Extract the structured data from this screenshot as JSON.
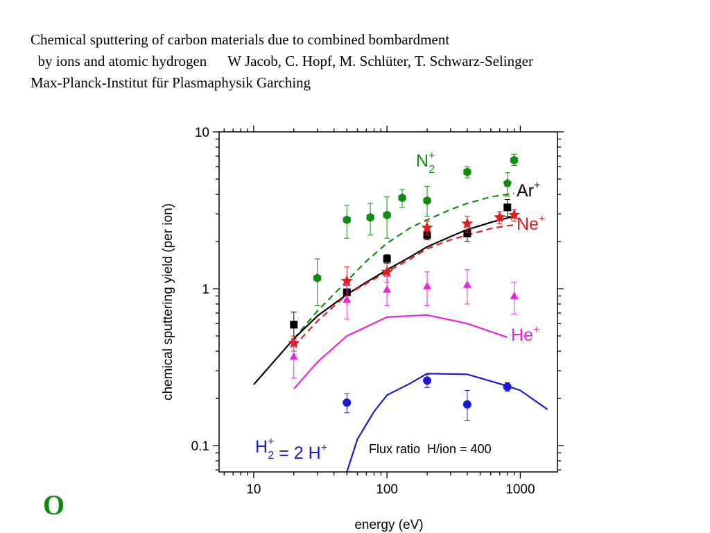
{
  "header": {
    "line1": "Chemical sputtering of carbon materials due to combined bombardment",
    "line2a": "by ions and atomic hydrogen",
    "line2b": "W Jacob, C. Hopf, M. Schlüter, T. Schwarz-Selinger",
    "line3": "Max-Planck-Institut für Plasmaphysik Garching"
  },
  "corner_mark": "O",
  "colors": {
    "n2": "#118c11",
    "ar": "#000000",
    "ne": "#e02020",
    "he": "#ee22dd",
    "h": "#1a1ad6"
  },
  "chart_data": {
    "type": "scatter",
    "x_scale": "log",
    "y_scale": "log",
    "xlim": [
      5.5,
      1900
    ],
    "ylim": [
      0.068,
      10
    ],
    "xlabel": "energy (eV)",
    "ylabel": "chemical sputtering yield (per ion)",
    "x_ticks": [
      {
        "v": 10,
        "label": "10"
      },
      {
        "v": 100,
        "label": "100"
      },
      {
        "v": 1000,
        "label": "1000"
      }
    ],
    "y_ticks": [
      {
        "v": 0.1,
        "label": "0.1"
      },
      {
        "v": 1,
        "label": "1"
      },
      {
        "v": 10,
        "label": "10"
      }
    ],
    "annotation": "Flux ratio  H/ion = 400",
    "series_labels": {
      "n2": {
        "base": "N",
        "sub": "2",
        "sup": "+"
      },
      "ar": {
        "base": "Ar",
        "sup": "+"
      },
      "ne": {
        "base": "Ne",
        "sup": "+"
      },
      "he": {
        "base": "He",
        "sup": "+"
      },
      "h": {
        "base": "H",
        "sub": "2",
        "sup": "+",
        "rest": " = 2 H",
        "sup2": "+"
      }
    },
    "series": [
      {
        "key": "n2",
        "marker": "hexagon",
        "points": [
          {
            "x": 30,
            "y": 1.17,
            "lo": 0.78,
            "hi": 1.55
          },
          {
            "x": 50,
            "y": 2.75,
            "lo": 2.1,
            "hi": 3.4
          },
          {
            "x": 75,
            "y": 2.85,
            "lo": 2.2,
            "hi": 3.5
          },
          {
            "x": 100,
            "y": 2.95,
            "lo": 2.1,
            "hi": 3.85
          },
          {
            "x": 130,
            "y": 3.8,
            "lo": 3.3,
            "hi": 4.3
          },
          {
            "x": 200,
            "y": 3.65,
            "lo": 2.9,
            "hi": 4.5
          },
          {
            "x": 400,
            "y": 5.55,
            "lo": 5.1,
            "hi": 6.0
          },
          {
            "x": 900,
            "y": 6.6,
            "lo": 6.1,
            "hi": 7.2
          }
        ]
      },
      {
        "key": "n2",
        "marker": "pentagon",
        "points": [
          {
            "x": 800,
            "y": 4.7,
            "lo": 3.9,
            "hi": 5.5
          }
        ]
      },
      {
        "key": "ar",
        "marker": "square",
        "points": [
          {
            "x": 20,
            "y": 0.59,
            "lo": 0.48,
            "hi": 0.71
          },
          {
            "x": 50,
            "y": 0.95,
            "lo": 0.85,
            "hi": 1.05
          },
          {
            "x": 100,
            "y": 1.55,
            "lo": 1.45,
            "hi": 1.65
          },
          {
            "x": 200,
            "y": 2.2,
            "lo": 2.05,
            "hi": 2.35
          },
          {
            "x": 400,
            "y": 2.25,
            "lo": 2.0,
            "hi": 2.5
          },
          {
            "x": 800,
            "y": 3.3,
            "lo": 2.9,
            "hi": 3.7
          }
        ]
      },
      {
        "key": "ne",
        "marker": "star",
        "points": [
          {
            "x": 20,
            "y": 0.45,
            "lo": 0.4,
            "hi": 0.5
          },
          {
            "x": 50,
            "y": 1.12,
            "lo": 0.9,
            "hi": 1.38
          },
          {
            "x": 100,
            "y": 1.28,
            "lo": 1.1,
            "hi": 1.45
          },
          {
            "x": 200,
            "y": 2.45,
            "lo": 2.2,
            "hi": 2.7
          },
          {
            "x": 400,
            "y": 2.6,
            "lo": 2.3,
            "hi": 2.9
          },
          {
            "x": 700,
            "y": 2.85,
            "lo": 2.6,
            "hi": 3.1
          },
          {
            "x": 900,
            "y": 2.95,
            "lo": 2.7,
            "hi": 3.2
          }
        ]
      },
      {
        "key": "he",
        "marker": "triangle",
        "points": [
          {
            "x": 20,
            "y": 0.37,
            "lo": 0.27,
            "hi": 0.47
          },
          {
            "x": 50,
            "y": 0.85,
            "lo": 0.64,
            "hi": 1.05
          },
          {
            "x": 100,
            "y": 0.99,
            "lo": 0.78,
            "hi": 1.2
          },
          {
            "x": 200,
            "y": 1.04,
            "lo": 0.78,
            "hi": 1.28
          },
          {
            "x": 400,
            "y": 1.06,
            "lo": 0.8,
            "hi": 1.32
          },
          {
            "x": 900,
            "y": 0.9,
            "lo": 0.69,
            "hi": 1.1
          }
        ]
      },
      {
        "key": "h",
        "marker": "circle",
        "points": [
          {
            "x": 50,
            "y": 0.188,
            "lo": 0.162,
            "hi": 0.215
          },
          {
            "x": 200,
            "y": 0.26,
            "lo": 0.235,
            "hi": 0.285
          },
          {
            "x": 400,
            "y": 0.183,
            "lo": 0.145,
            "hi": 0.225
          },
          {
            "x": 800,
            "y": 0.237,
            "lo": 0.222,
            "hi": 0.252
          }
        ]
      }
    ],
    "curves": [
      {
        "key": "n2",
        "dash": true,
        "points": [
          [
            20,
            0.48
          ],
          [
            30,
            0.72
          ],
          [
            50,
            1.12
          ],
          [
            70,
            1.5
          ],
          [
            100,
            1.95
          ],
          [
            150,
            2.45
          ],
          [
            200,
            2.75
          ],
          [
            300,
            3.2
          ],
          [
            400,
            3.5
          ],
          [
            600,
            3.85
          ],
          [
            800,
            4.0
          ],
          [
            900,
            4.05
          ]
        ]
      },
      {
        "key": "ar",
        "dash": false,
        "points": [
          [
            10,
            0.245
          ],
          [
            20,
            0.48
          ],
          [
            30,
            0.67
          ],
          [
            50,
            0.92
          ],
          [
            70,
            1.1
          ],
          [
            100,
            1.32
          ],
          [
            150,
            1.6
          ],
          [
            200,
            1.85
          ],
          [
            300,
            2.15
          ],
          [
            400,
            2.38
          ],
          [
            600,
            2.65
          ],
          [
            900,
            2.9
          ]
        ]
      },
      {
        "key": "ne",
        "dash": true,
        "points": [
          [
            20,
            0.43
          ],
          [
            30,
            0.62
          ],
          [
            50,
            0.92
          ],
          [
            70,
            1.08
          ],
          [
            100,
            1.28
          ],
          [
            150,
            1.55
          ],
          [
            200,
            1.8
          ],
          [
            300,
            2.05
          ],
          [
            400,
            2.2
          ],
          [
            600,
            2.42
          ],
          [
            800,
            2.52
          ],
          [
            900,
            2.55
          ]
        ]
      },
      {
        "key": "he",
        "dash": false,
        "points": [
          [
            20,
            0.23
          ],
          [
            30,
            0.34
          ],
          [
            50,
            0.5
          ],
          [
            100,
            0.66
          ],
          [
            200,
            0.68
          ],
          [
            400,
            0.6
          ],
          [
            800,
            0.49
          ]
        ]
      },
      {
        "key": "h",
        "dash": false,
        "points": [
          [
            50,
            0.068
          ],
          [
            60,
            0.11
          ],
          [
            80,
            0.165
          ],
          [
            100,
            0.21
          ],
          [
            150,
            0.25
          ],
          [
            200,
            0.288
          ],
          [
            400,
            0.285
          ],
          [
            800,
            0.24
          ],
          [
            1000,
            0.225
          ],
          [
            1600,
            0.17
          ]
        ]
      }
    ]
  }
}
